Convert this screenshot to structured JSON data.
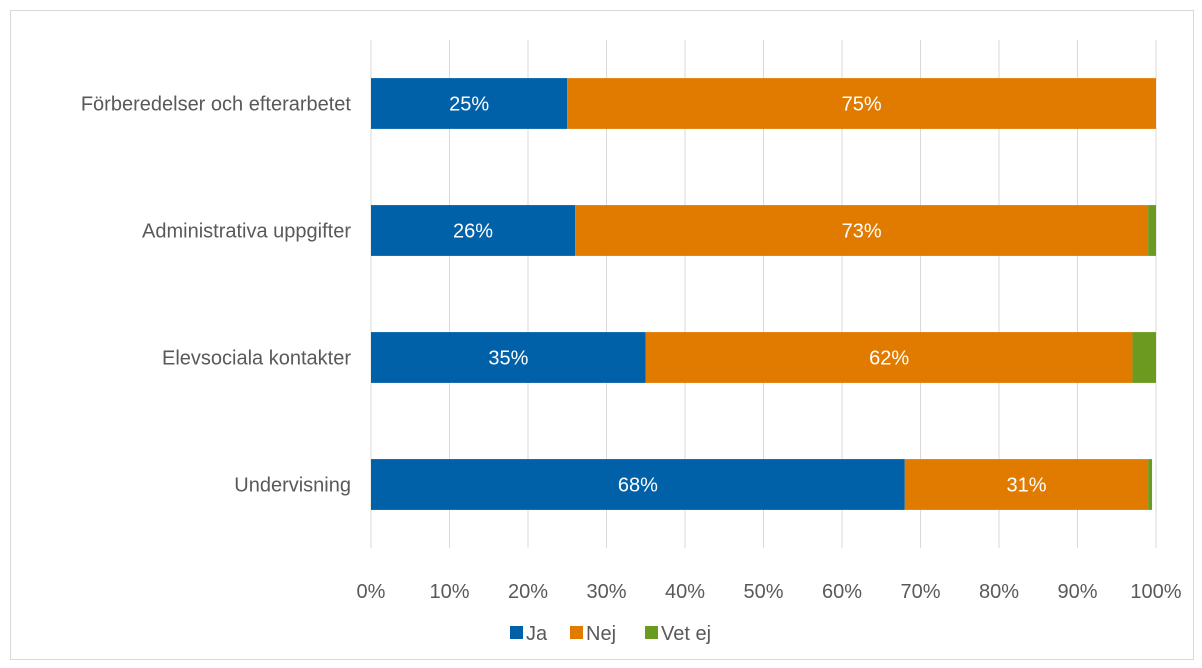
{
  "chart_data": {
    "type": "bar",
    "orientation": "horizontal",
    "stacked": true,
    "categories": [
      "Förberedelser och efterarbetet",
      "Administrativa uppgifter",
      "Elevsociala kontakter",
      "Undervisning"
    ],
    "series": [
      {
        "name": "Ja",
        "color": "#0060a8",
        "values": [
          0.25,
          0.26,
          0.35,
          0.68
        ],
        "labels": [
          "25%",
          "26%",
          "35%",
          "68%"
        ]
      },
      {
        "name": "Nej",
        "color": "#e07b00",
        "values": [
          0.75,
          0.73,
          0.62,
          0.31
        ],
        "labels": [
          "75%",
          "73%",
          "62%",
          "31%"
        ]
      },
      {
        "name": "Vet ej",
        "color": "#6a9a1f",
        "values": [
          0.0,
          0.015,
          0.03,
          0.005
        ],
        "labels": [
          "",
          "",
          "",
          ""
        ]
      }
    ],
    "xlim": [
      0,
      1
    ],
    "xticks": [
      "0%",
      "10%",
      "20%",
      "30%",
      "40%",
      "50%",
      "60%",
      "70%",
      "80%",
      "90%",
      "100%"
    ],
    "grid": true,
    "legend_position": "bottom",
    "title": "",
    "xlabel": "",
    "ylabel": ""
  }
}
